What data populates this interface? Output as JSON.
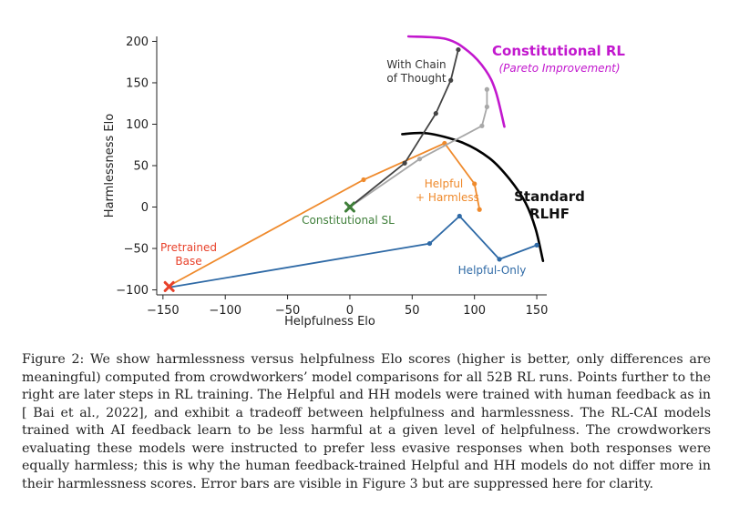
{
  "chart_data": {
    "type": "line",
    "xlabel": "Helpfulness Elo",
    "ylabel": "Harmlessness Elo",
    "xlim": [
      -155,
      158
    ],
    "ylim": [
      -106,
      206
    ],
    "xticks": [
      -150,
      -100,
      -50,
      0,
      50,
      100,
      150
    ],
    "yticks": [
      -100,
      -50,
      0,
      50,
      100,
      150,
      200
    ],
    "xtick_labels": [
      "−150",
      "−100",
      "−50",
      "0",
      "50",
      "100",
      "150"
    ],
    "ytick_labels": [
      "−100",
      "−50",
      "0",
      "50",
      "100",
      "150",
      "200"
    ],
    "grid": false,
    "series": [
      {
        "name": "Helpful-Only",
        "color": "#2f6aa6",
        "points": [
          [
            -145,
            -97
          ],
          [
            64,
            -44
          ],
          [
            88,
            -11
          ],
          [
            120,
            -63
          ],
          [
            150,
            -46
          ]
        ]
      },
      {
        "name": "Helpful + Harmless",
        "color": "#ef8a2c",
        "points": [
          [
            -145,
            -95
          ],
          [
            11,
            33
          ],
          [
            76,
            77
          ],
          [
            100,
            28
          ],
          [
            104,
            -3
          ]
        ]
      },
      {
        "name": "Constitutional RL",
        "color": "#a8a8a8",
        "points": [
          [
            0,
            0
          ],
          [
            56,
            58
          ],
          [
            106,
            98
          ],
          [
            110,
            121
          ],
          [
            110,
            142
          ]
        ]
      },
      {
        "name": "With Chain of Thought",
        "color": "#444444",
        "points": [
          [
            0,
            0
          ],
          [
            44,
            53
          ],
          [
            69,
            113
          ],
          [
            81,
            153
          ],
          [
            87,
            190
          ]
        ]
      }
    ],
    "markers": [
      {
        "label": "Pretrained Base",
        "point": [
          -145,
          -96
        ],
        "color": "#e8412a",
        "shape": "x"
      },
      {
        "label": "Constitutional SL",
        "point": [
          0,
          0
        ],
        "color": "#3f7f3a",
        "shape": "x"
      }
    ],
    "frontiers": [
      {
        "name": "Constitutional RL",
        "color": "#c218ce",
        "points": [
          [
            47,
            206
          ],
          [
            77,
            203
          ],
          [
            95,
            188
          ],
          [
            109,
            165
          ],
          [
            117,
            140
          ],
          [
            124,
            97
          ]
        ]
      },
      {
        "name": "Standard RLHF",
        "color": "#000000",
        "points": [
          [
            42,
            88
          ],
          [
            62,
            89
          ],
          [
            90,
            78
          ],
          [
            112,
            59
          ],
          [
            128,
            34
          ],
          [
            141,
            5
          ],
          [
            149,
            -26
          ],
          [
            155,
            -65
          ]
        ]
      }
    ],
    "annotations": {
      "chain_of_thought": [
        "With Chain",
        "of Thought"
      ],
      "constitutional_rl": "Constitutional RL",
      "pareto": "(Pareto Improvement)",
      "helpful_harmless": [
        "Helpful",
        "+ Harmless"
      ],
      "standard_rlhf": [
        "Standard",
        "RLHF"
      ],
      "constitutional_sl": "Constitutional SL",
      "pretrained_base": [
        "Pretrained",
        "Base"
      ],
      "helpful_only": "Helpful-Only"
    }
  },
  "caption": "Figure 2: We show harmlessness versus helpfulness Elo scores (higher is better, only differences are meaningful) computed from crowdworkers’ model comparisons for all 52B RL runs. Points further to the right are later steps in RL training. The Helpful and HH models were trained with human feedback as in [ Bai et al., 2022], and exhibit a tradeoff between helpfulness and harmlessness. The RL-CAI models trained with AI feedback learn to be less harmful at a given level of helpfulness. The crowdworkers evaluating these models were instructed to prefer less evasive responses when both responses were equally harmless; this is why the human feedback-trained Helpful and HH models do not differ more in their harmlessness scores. Error bars are visible in Figure 3 but are suppressed here for clarity."
}
